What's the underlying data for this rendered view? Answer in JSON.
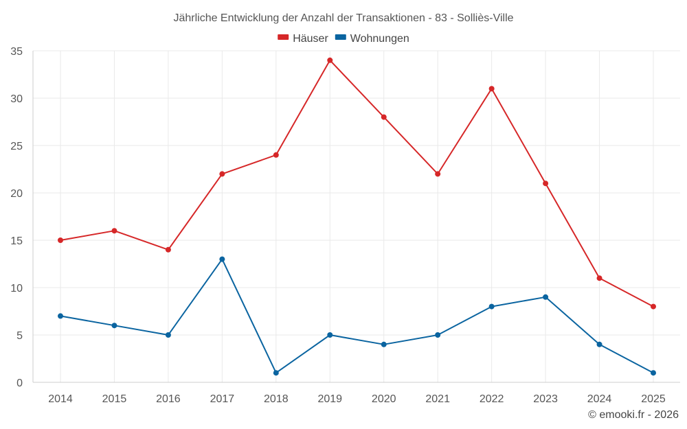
{
  "chart_data": {
    "type": "line",
    "title": "Jährliche Entwicklung der Anzahl der Transaktionen - 83 - Solliès-Ville",
    "categories": [
      "2014",
      "2015",
      "2016",
      "2017",
      "2018",
      "2019",
      "2020",
      "2021",
      "2022",
      "2023",
      "2024",
      "2025"
    ],
    "series": [
      {
        "name": "Häuser",
        "color": "#d62728",
        "values": [
          15,
          16,
          14,
          22,
          24,
          34,
          28,
          22,
          31,
          21,
          11,
          8
        ]
      },
      {
        "name": "Wohnungen",
        "color": "#0a64a0",
        "values": [
          7,
          6,
          5,
          13,
          1,
          5,
          4,
          5,
          8,
          9,
          4,
          1
        ]
      }
    ],
    "ylim": [
      0,
      35
    ],
    "yticks": [
      0,
      5,
      10,
      15,
      20,
      25,
      30,
      35
    ],
    "xlabel": "",
    "ylabel": "",
    "grid": true,
    "legend_position": "top-center"
  },
  "credit": "© emooki.fr - 2026"
}
